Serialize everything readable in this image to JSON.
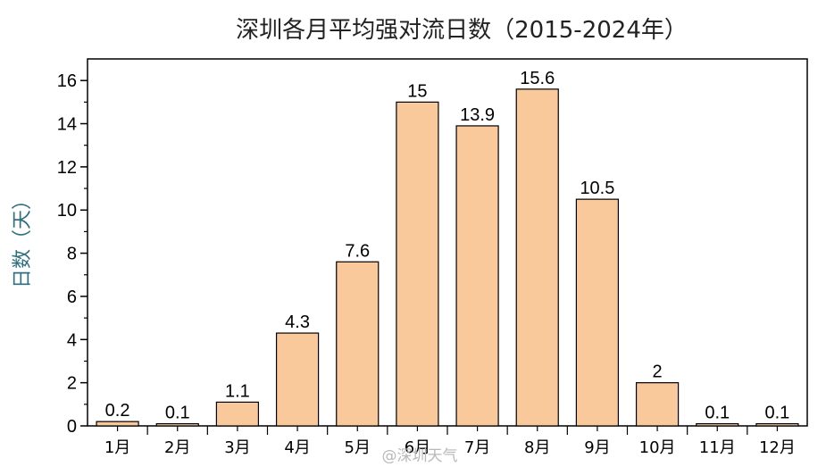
{
  "chart_data": {
    "type": "bar",
    "title": "深圳各月平均强对流日数（2015-2024年）",
    "xlabel": "",
    "ylabel": "日数（天）",
    "categories": [
      "1月",
      "2月",
      "3月",
      "4月",
      "5月",
      "6月",
      "7月",
      "8月",
      "9月",
      "10月",
      "11月",
      "12月"
    ],
    "values": [
      0.2,
      0.1,
      1.1,
      4.3,
      7.6,
      15,
      13.9,
      15.6,
      10.5,
      2,
      0.1,
      0.1
    ],
    "data_labels": [
      "0.2",
      "0.1",
      "1.1",
      "4.3",
      "7.6",
      "15",
      "13.9",
      "15.6",
      "10.5",
      "2",
      "0.1",
      "0.1"
    ],
    "ylim": [
      0,
      17
    ],
    "yticks": [
      0,
      2,
      4,
      6,
      8,
      10,
      12,
      14,
      16
    ],
    "grid": false,
    "legend": "none",
    "bar_color": "#f9c89b",
    "bar_edge_color": "#000000"
  },
  "watermark": "@深圳天气"
}
